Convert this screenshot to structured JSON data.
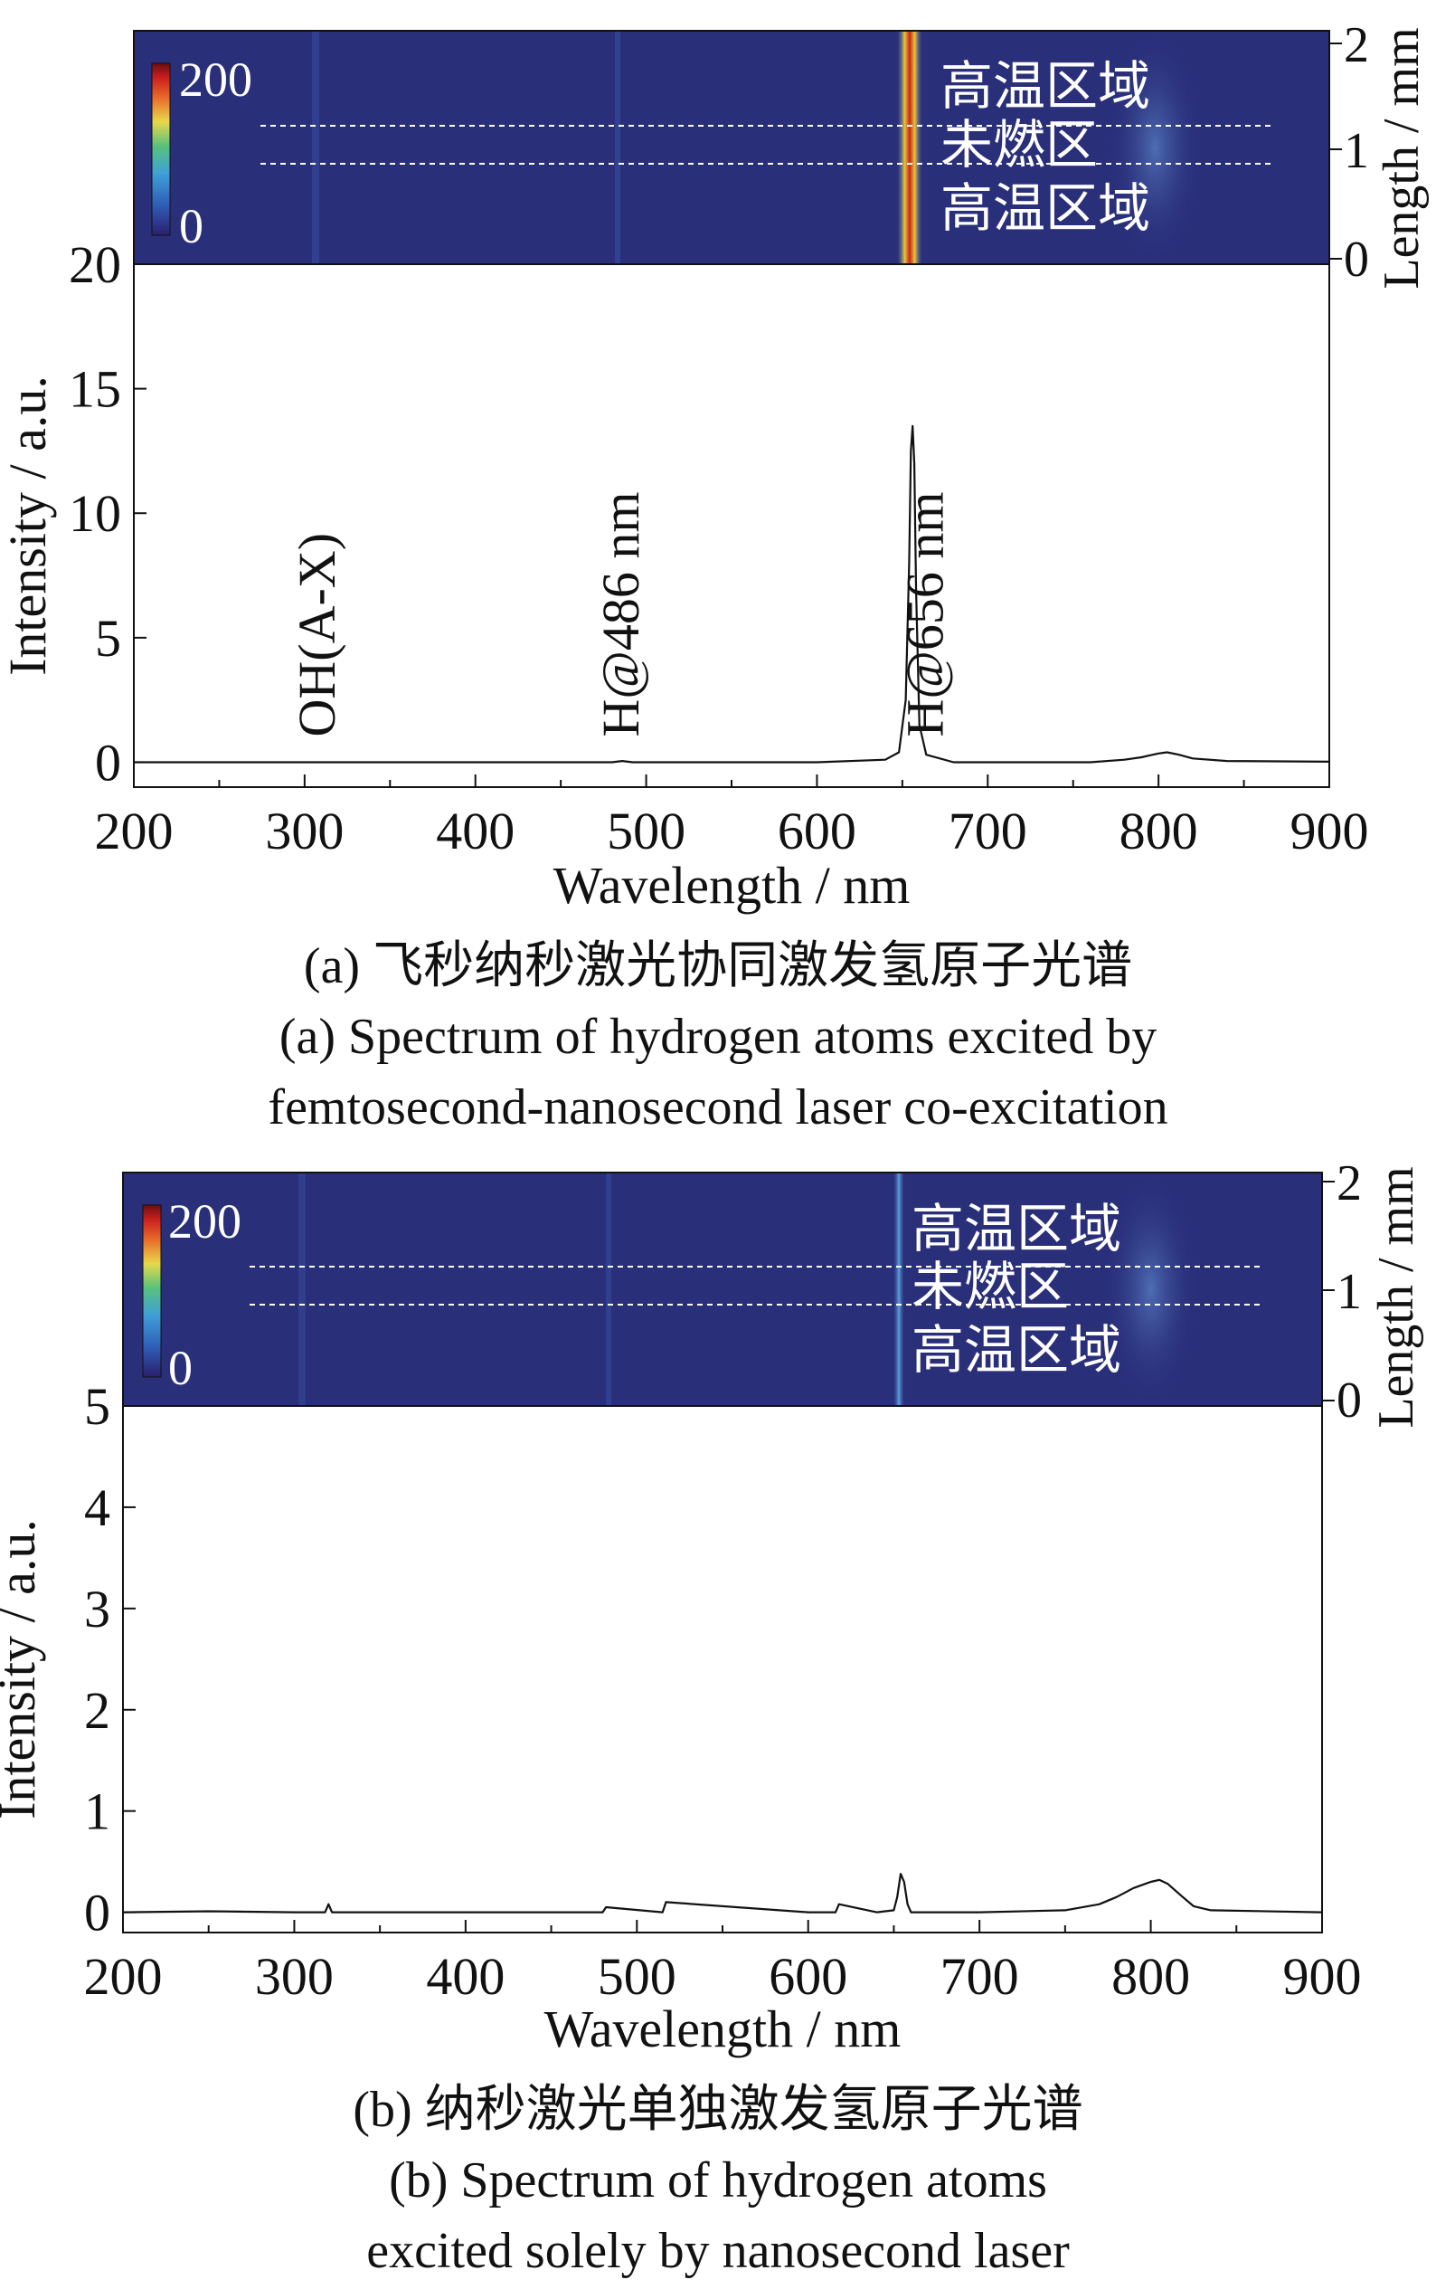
{
  "colors": {
    "camera_background": "#2a2f7a",
    "camera_noise_light": "#3a55a8",
    "emission_peak": "#c8241c",
    "emission_mid": "#e8c83a",
    "line_color": "#111111",
    "dashed_line": "#ffffff",
    "colorbar_stops": [
      "#2b1f6e",
      "#2f5fb8",
      "#3fa0d8",
      "#58c27a",
      "#e8d84a",
      "#e86a2a",
      "#c81e1e",
      "#6a0e0e"
    ]
  },
  "panels": [
    {
      "caption_cn": "(a) 飞秒纳秒激光协同激发氢原子光谱",
      "caption_en_line1": "(a) Spectrum of hydrogen atoms excited by",
      "caption_en_line2": "femtosecond-nanosecond laser co-excitation",
      "image": {
        "colorbar_max": "200",
        "colorbar_min": "0",
        "region_upper": "高温区域",
        "region_middle": "未燃区",
        "region_lower": "高温区域",
        "length_axis_label": "Length / mm",
        "length_ticks": [
          "0",
          "1",
          "2"
        ],
        "bright_band_wavelength_nm": 656,
        "bright_band_intensity": "strong",
        "diffuse_band_wavelength_nm": 805
      },
      "chart_data": {
        "type": "line",
        "xlabel": "Wavelength / nm",
        "ylabel": "Intensity / a.u.",
        "xlim": [
          200,
          900
        ],
        "ylim": [
          -1,
          20
        ],
        "xticks": [
          "200",
          "300",
          "400",
          "500",
          "600",
          "700",
          "800",
          "900"
        ],
        "yticks": [
          "0",
          "5",
          "10",
          "15",
          "20"
        ],
        "ytick_values": [
          0,
          5,
          10,
          15,
          20
        ],
        "series": [
          {
            "x": [
              200,
              300,
              400,
              480,
              486,
              492,
              600,
              640,
              648,
              652,
              654,
              655,
              656,
              657,
              658,
              660,
              664,
              680,
              760,
              780,
              790,
              800,
              805,
              812,
              820,
              840,
              900
            ],
            "y": [
              0,
              0,
              0,
              0,
              0.05,
              0,
              0,
              0.1,
              0.4,
              2.5,
              8.0,
              12.5,
              13.5,
              12.0,
              7.0,
              1.5,
              0.3,
              0,
              0,
              0.1,
              0.2,
              0.35,
              0.4,
              0.3,
              0.15,
              0.05,
              0.02
            ]
          }
        ],
        "annotations": [
          {
            "text": "OH(A-X)",
            "x": 308
          },
          {
            "text": "H@486 nm",
            "x": 486
          },
          {
            "text": "H@656 nm",
            "x": 664
          }
        ]
      }
    },
    {
      "caption_cn": "(b) 纳秒激光单独激发氢原子光谱",
      "caption_en_line1": "(b) Spectrum of hydrogen atoms",
      "caption_en_line2": "excited solely by nanosecond laser",
      "image": {
        "colorbar_max": "200",
        "colorbar_min": "0",
        "region_upper": "高温区域",
        "region_middle": "未燃区",
        "region_lower": "高温区域",
        "length_axis_label": "Length / mm",
        "length_ticks": [
          "0",
          "1",
          "2"
        ],
        "bright_band_wavelength_nm": 656,
        "bright_band_intensity": "weak",
        "diffuse_band_wavelength_nm": 805
      },
      "chart_data": {
        "type": "line",
        "xlabel": "Wavelength / nm",
        "ylabel": "Intensity / a.u.",
        "xlim": [
          200,
          900
        ],
        "ylim": [
          -0.2,
          5
        ],
        "xticks": [
          "200",
          "300",
          "400",
          "500",
          "600",
          "700",
          "800",
          "900"
        ],
        "yticks": [
          "0",
          "1",
          "2",
          "3",
          "4",
          "5"
        ],
        "ytick_values": [
          0,
          1,
          2,
          3,
          4,
          5
        ],
        "series": [
          {
            "x": [
              200,
              250,
              300,
              318,
              320,
              322,
              400,
              480,
              482,
              515,
              517,
              600,
              616,
              618,
              640,
              650,
              652,
              654,
              656,
              658,
              660,
              700,
              750,
              770,
              780,
              790,
              800,
              805,
              810,
              818,
              825,
              835,
              900
            ],
            "y": [
              0,
              0.01,
              0,
              0,
              0.08,
              0,
              0,
              0,
              0.05,
              0,
              0.1,
              0,
              0,
              0.08,
              0,
              0.02,
              0.15,
              0.38,
              0.3,
              0.08,
              0,
              0,
              0.02,
              0.08,
              0.15,
              0.24,
              0.3,
              0.32,
              0.28,
              0.16,
              0.06,
              0.02,
              0
            ]
          }
        ],
        "annotations": []
      }
    }
  ]
}
